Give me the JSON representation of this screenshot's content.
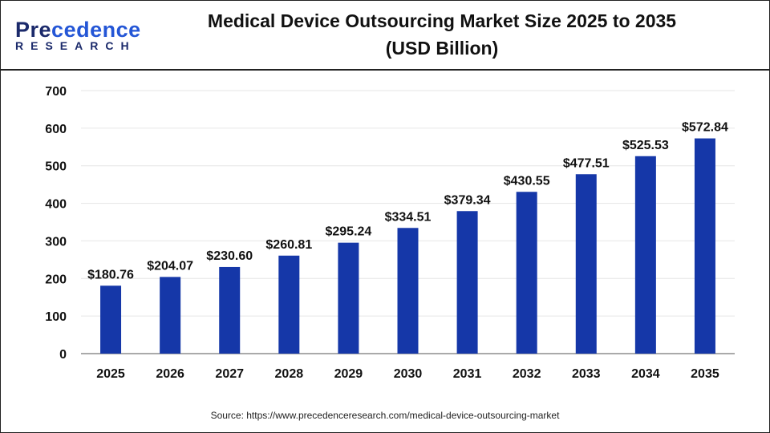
{
  "logo": {
    "main": "Precedence",
    "sub": "RESEARCH"
  },
  "chart_data": {
    "type": "bar",
    "title": "Medical Device Outsourcing Market Size 2025 to 2035",
    "subtitle": "(USD Billion)",
    "categories": [
      "2025",
      "2026",
      "2027",
      "2028",
      "2029",
      "2030",
      "2031",
      "2032",
      "2033",
      "2034",
      "2035"
    ],
    "values": [
      180.76,
      204.07,
      230.6,
      260.81,
      295.24,
      334.51,
      379.34,
      430.55,
      477.51,
      525.53,
      572.84
    ],
    "data_labels": [
      "$180.76",
      "$204.07",
      "$230.60",
      "$260.81",
      "$295.24",
      "$334.51",
      "$379.34",
      "$430.55",
      "$477.51",
      "$525.53",
      "$572.84"
    ],
    "ylim": [
      0,
      700
    ],
    "yticks": [
      0,
      100,
      200,
      300,
      400,
      500,
      600,
      700
    ],
    "grid": true,
    "bar_color": "#1537a8",
    "xlabel": "",
    "ylabel": ""
  },
  "source": "Source: https://www.precedenceresearch.com/medical-device-outsourcing-market"
}
